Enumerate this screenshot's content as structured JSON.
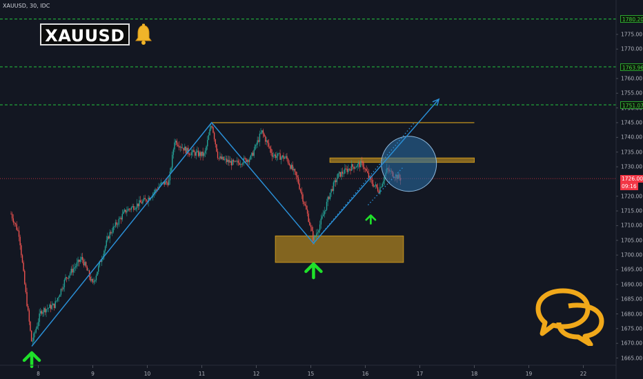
{
  "header": {
    "symbol_line": "XAUUSD, 30, IDC"
  },
  "logo": {
    "text": "XAUUSD"
  },
  "colors": {
    "background": "#131722",
    "bull": "#26a69a",
    "bear": "#ef5350",
    "trendline": "#2a8fd6",
    "zone": "#c8961e",
    "arrow": "#1fe12a",
    "level": "#26c740",
    "current_price": "#f23645"
  },
  "chart_data": {
    "type": "candlestick",
    "symbol": "XAUUSD",
    "timeframe": "30",
    "source": "IDC",
    "x_ticks": [
      "8",
      "9",
      "10",
      "11",
      "12",
      "15",
      "16",
      "17",
      "18",
      "19",
      "22"
    ],
    "y_ticks": [
      "1665.00",
      "1670.00",
      "1675.00",
      "1680.00",
      "1685.00",
      "1690.00",
      "1695.00",
      "1700.00",
      "1705.00",
      "1710.00",
      "1715.00",
      "1720.00",
      "1730.00",
      "1735.00",
      "1740.00",
      "1745.00",
      "1750.00",
      "1755.00",
      "1760.00",
      "1770.00",
      "1775.00"
    ],
    "ylim": [
      1662,
      1784
    ],
    "price_path": [
      [
        0,
        1714
      ],
      [
        0.15,
        1707
      ],
      [
        0.25,
        1690
      ],
      [
        0.38,
        1670
      ],
      [
        0.55,
        1681
      ],
      [
        0.8,
        1683
      ],
      [
        1.0,
        1692
      ],
      [
        1.3,
        1699
      ],
      [
        1.5,
        1690
      ],
      [
        1.8,
        1707
      ],
      [
        2.1,
        1715
      ],
      [
        2.5,
        1719
      ],
      [
        2.75,
        1724
      ],
      [
        2.9,
        1725
      ],
      [
        3.0,
        1739
      ],
      [
        3.25,
        1735
      ],
      [
        3.55,
        1734
      ],
      [
        3.68,
        1745
      ],
      [
        3.8,
        1733
      ],
      [
        4.1,
        1731
      ],
      [
        4.4,
        1733
      ],
      [
        4.6,
        1742
      ],
      [
        4.8,
        1734
      ],
      [
        5.05,
        1733
      ],
      [
        5.25,
        1726
      ],
      [
        5.45,
        1713
      ],
      [
        5.55,
        1705
      ],
      [
        5.7,
        1712
      ],
      [
        5.85,
        1721
      ],
      [
        6.0,
        1727
      ],
      [
        6.25,
        1730
      ],
      [
        6.45,
        1731
      ],
      [
        6.6,
        1725
      ],
      [
        6.75,
        1722
      ],
      [
        6.9,
        1729
      ],
      [
        7.05,
        1727
      ],
      [
        7.15,
        1726
      ]
    ],
    "horizontal_levels": [
      {
        "label": "1780.20",
        "price": 1780.2
      },
      {
        "label": "1763.96",
        "price": 1763.96
      },
      {
        "label": "1751.07",
        "price": 1751.07
      }
    ],
    "current_price": {
      "label": "1726.00",
      "price": 1726.0,
      "countdown": "09:16"
    },
    "resistance_line": {
      "price": 1745,
      "x_start": 3.68,
      "x_end": 8.5
    },
    "zones": [
      {
        "price_top": 1733.0,
        "price_bottom": 1731.5,
        "x_start": 5.85,
        "x_end": 8.5
      },
      {
        "price_top": 1706.5,
        "price_bottom": 1697.5,
        "x_start": 4.85,
        "x_end": 7.2
      }
    ],
    "trendlines": [
      {
        "points": [
          [
            0.38,
            1669
          ],
          [
            3.68,
            1745
          ],
          [
            5.55,
            1704
          ],
          [
            7.85,
            1753
          ]
        ]
      }
    ],
    "dotted_lines": [
      {
        "points": [
          [
            5.55,
            1704
          ],
          [
            7.4,
            1745
          ]
        ]
      },
      {
        "points": [
          [
            6.55,
            1717
          ],
          [
            7.2,
            1730
          ]
        ]
      }
    ],
    "target_circle": {
      "x": 7.3,
      "price": 1731,
      "radius_px": 40
    },
    "up_arrows": [
      {
        "x": 0.38,
        "price": 1666.8,
        "size": "large"
      },
      {
        "x": 5.55,
        "price": 1697,
        "size": "large"
      },
      {
        "x": 6.6,
        "price": 1713.5,
        "size": "small"
      }
    ]
  }
}
